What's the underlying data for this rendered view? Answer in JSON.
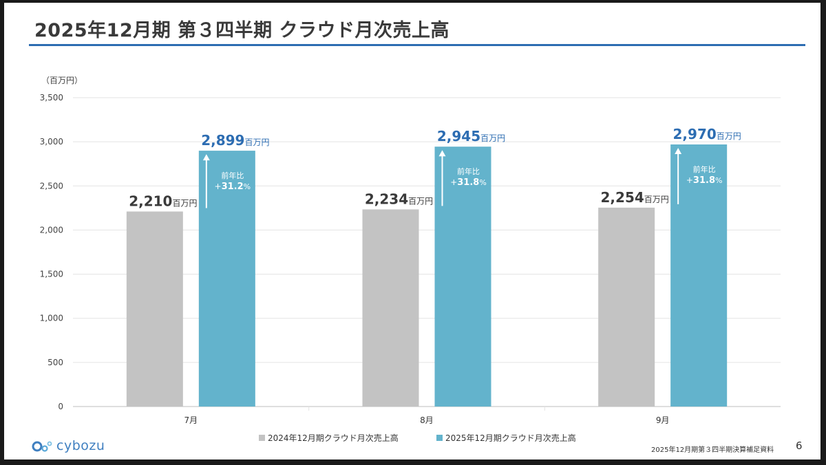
{
  "page": {
    "title": "2025年12月期 第３四半期 クラウド月次売上高",
    "unit_label": "（百万円）",
    "logo_text": "cybozu",
    "footer_note": "2025年12月期第３四半期決算補足資料",
    "page_number": "6"
  },
  "colors": {
    "prev_year": "#c3c3c3",
    "curr_year": "#63b3cc",
    "accent": "#2d6db2",
    "value_text": "#3a3a3a"
  },
  "chart_data": {
    "type": "bar",
    "categories": [
      "7月",
      "8月",
      "9月"
    ],
    "series": [
      {
        "name": "2024年12月期クラウド月次売上高",
        "values": [
          2210,
          2234,
          2254
        ],
        "labels": [
          "2,210",
          "2,234",
          "2,254"
        ]
      },
      {
        "name": "2025年12月期クラウド月次売上高",
        "values": [
          2899,
          2945,
          2970
        ],
        "labels": [
          "2,899",
          "2,945",
          "2,970"
        ]
      }
    ],
    "value_unit": "百万円",
    "yoy_label": "前年比",
    "yoy": [
      "+31.2%",
      "+31.8%",
      "+31.8%"
    ],
    "ylim": [
      0,
      3500
    ],
    "yticks": [
      "0",
      "500",
      "1,000",
      "1,500",
      "2,000",
      "2,500",
      "3,000",
      "3,500"
    ],
    "grid": true,
    "legend": "bottom-center"
  }
}
